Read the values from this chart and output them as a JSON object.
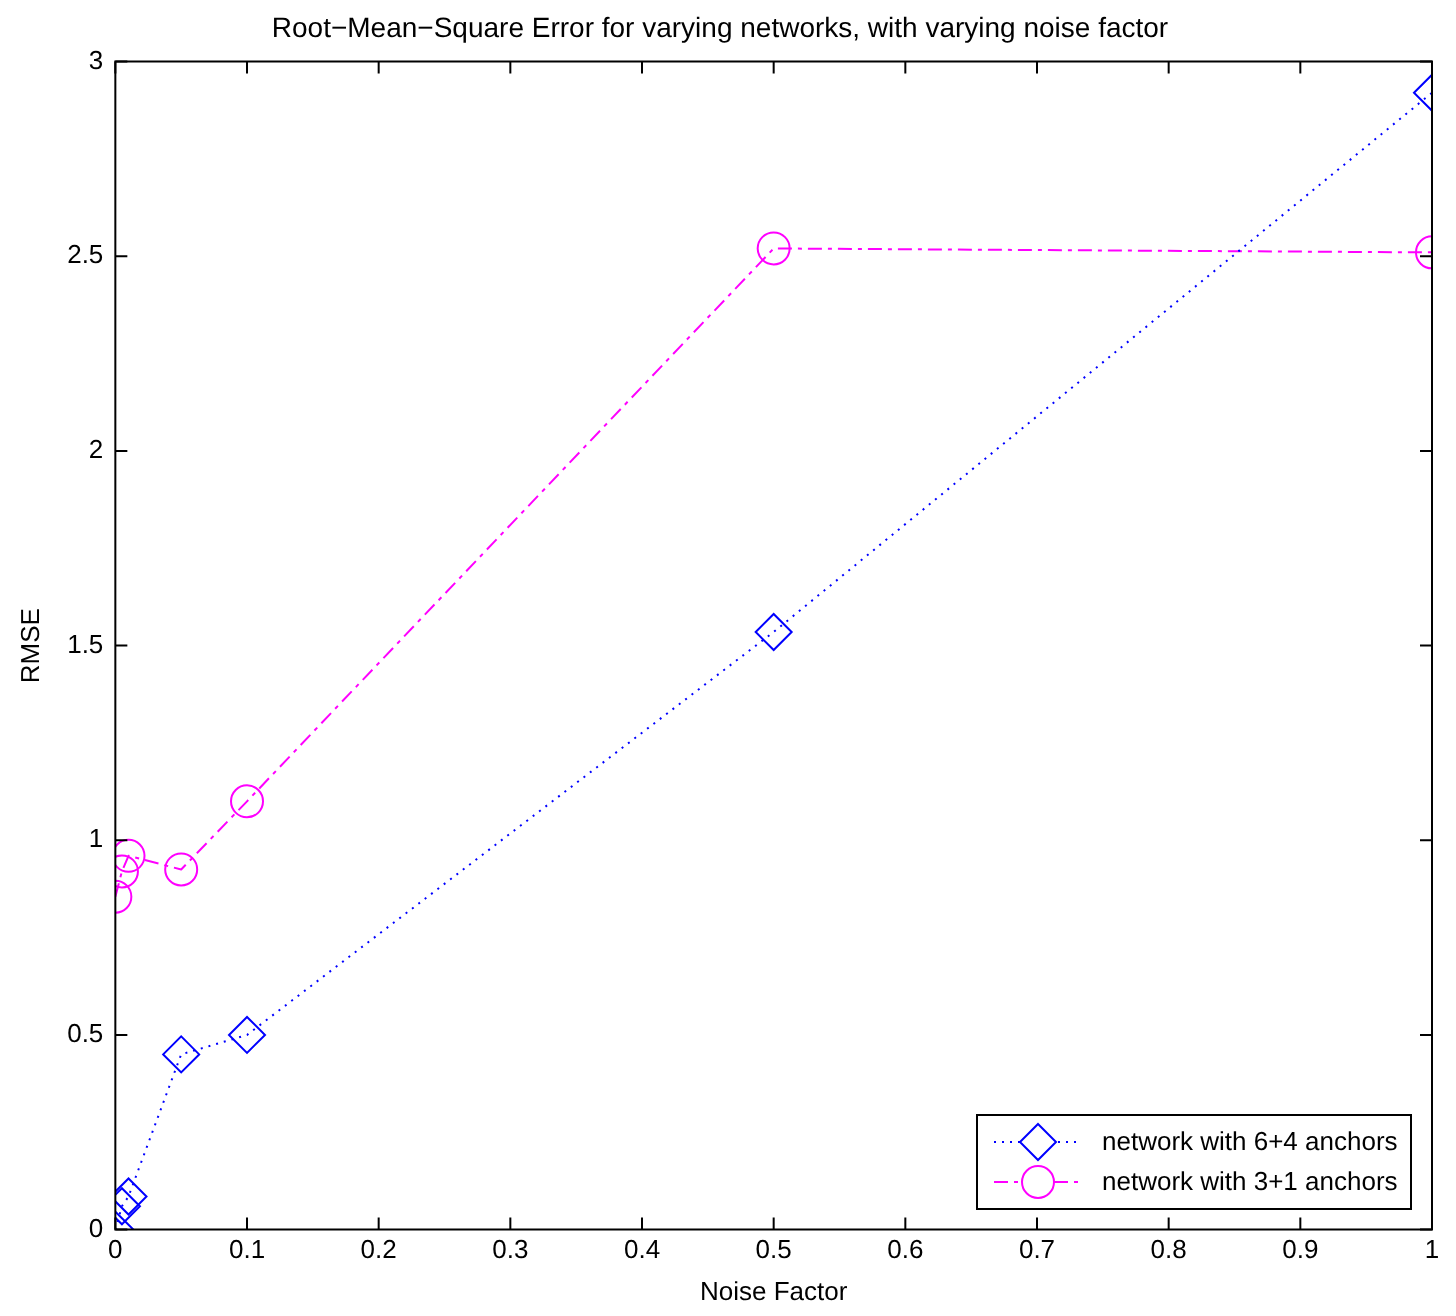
{
  "chart_data": {
    "type": "line",
    "title": "Root−Mean−Square Error for varying networks, with varying noise factor",
    "xlabel": "Noise Factor",
    "ylabel": "RMSE",
    "x": [
      0,
      0.005,
      0.01,
      0.05,
      0.1,
      0.5,
      1
    ],
    "series": [
      {
        "name": "network with 6+4 anchors",
        "color": "#0000ff",
        "marker": "diamond",
        "line_style": "dotted",
        "values": [
          0.0,
          0.06,
          0.085,
          0.45,
          0.5,
          1.535,
          2.92
        ]
      },
      {
        "name": "network with 3+1 anchors",
        "color": "#ff00ff",
        "marker": "circle",
        "line_style": "dashed",
        "values": [
          0.855,
          0.92,
          0.96,
          0.925,
          1.1,
          2.52,
          2.51
        ]
      }
    ],
    "xlim": [
      0,
      1
    ],
    "xticks": [
      0,
      0.1,
      0.2,
      0.3,
      0.4,
      0.5,
      0.6,
      0.7,
      0.8,
      0.9,
      1
    ],
    "ylim": [
      0,
      3
    ],
    "yticks": [
      0,
      0.5,
      1,
      1.5,
      2,
      2.5,
      3
    ],
    "grid": false,
    "legend": "bottom right"
  }
}
